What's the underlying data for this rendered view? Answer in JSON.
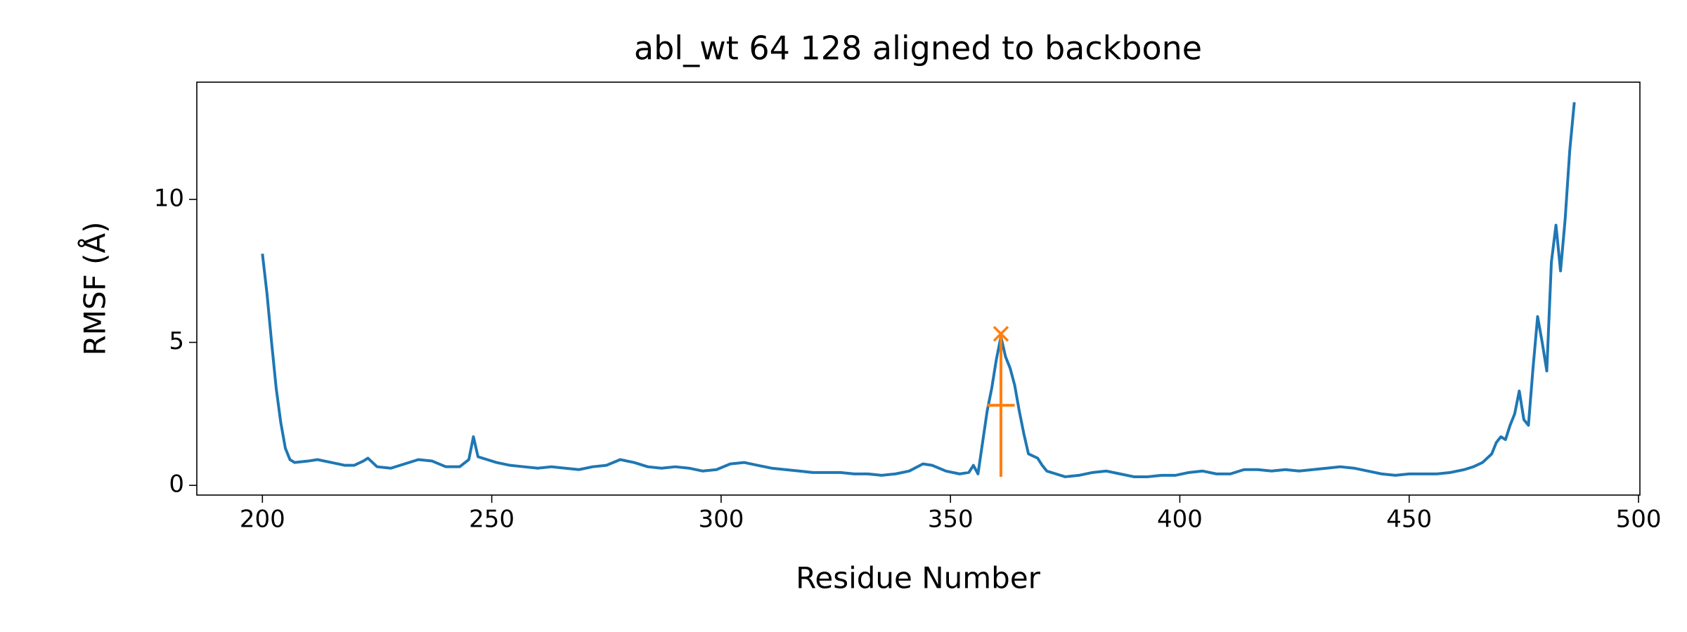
{
  "chart_data": {
    "type": "line",
    "title": "abl_wt 64 128 aligned to backbone",
    "xlabel": "Residue Number",
    "ylabel": "RMSF (Å)",
    "xlim": [
      185.7,
      500.3
    ],
    "ylim": [
      -0.34,
      14.1
    ],
    "xticks": [
      200,
      250,
      300,
      350,
      400,
      450,
      500
    ],
    "yticks": [
      0,
      5,
      10
    ],
    "grid": false,
    "series": [
      {
        "color": "#1f77b4",
        "x": [
          200,
          201,
          202,
          203,
          204,
          205,
          206,
          207,
          210,
          212,
          215,
          218,
          220,
          222,
          223,
          225,
          228,
          231,
          234,
          237,
          240,
          243,
          245,
          246,
          247,
          249,
          251,
          254,
          257,
          260,
          263,
          266,
          269,
          272,
          275,
          278,
          281,
          284,
          287,
          290,
          293,
          296,
          299,
          302,
          305,
          308,
          311,
          314,
          317,
          320,
          323,
          326,
          329,
          332,
          335,
          338,
          341,
          344,
          346,
          349,
          352,
          354,
          355,
          356,
          357,
          358,
          359,
          360,
          361,
          362,
          363,
          364,
          365,
          366,
          367,
          369,
          370,
          371,
          373,
          375,
          378,
          381,
          384,
          387,
          390,
          393,
          396,
          399,
          402,
          405,
          408,
          411,
          414,
          417,
          420,
          423,
          426,
          429,
          432,
          435,
          438,
          441,
          444,
          447,
          450,
          453,
          456,
          459,
          462,
          464,
          466,
          468,
          469,
          470,
          471,
          472,
          473,
          474,
          475,
          476,
          477,
          478,
          479,
          480,
          481,
          482,
          483,
          484,
          485,
          486
        ],
        "values": [
          8.1,
          6.7,
          5.0,
          3.4,
          2.2,
          1.3,
          0.9,
          0.8,
          0.85,
          0.9,
          0.8,
          0.7,
          0.7,
          0.85,
          0.95,
          0.65,
          0.6,
          0.75,
          0.9,
          0.85,
          0.65,
          0.65,
          0.9,
          1.7,
          1.0,
          0.9,
          0.8,
          0.7,
          0.65,
          0.6,
          0.65,
          0.6,
          0.55,
          0.65,
          0.7,
          0.9,
          0.8,
          0.65,
          0.6,
          0.65,
          0.6,
          0.5,
          0.55,
          0.75,
          0.8,
          0.7,
          0.6,
          0.55,
          0.5,
          0.45,
          0.45,
          0.45,
          0.4,
          0.4,
          0.35,
          0.4,
          0.5,
          0.75,
          0.7,
          0.5,
          0.4,
          0.45,
          0.7,
          0.4,
          1.5,
          2.6,
          3.4,
          4.4,
          5.2,
          4.5,
          4.1,
          3.5,
          2.6,
          1.8,
          1.1,
          0.95,
          0.7,
          0.5,
          0.4,
          0.3,
          0.35,
          0.45,
          0.5,
          0.4,
          0.3,
          0.3,
          0.35,
          0.35,
          0.45,
          0.5,
          0.4,
          0.4,
          0.55,
          0.55,
          0.5,
          0.55,
          0.5,
          0.55,
          0.6,
          0.65,
          0.6,
          0.5,
          0.4,
          0.35,
          0.4,
          0.4,
          0.4,
          0.45,
          0.55,
          0.65,
          0.8,
          1.1,
          1.5,
          1.7,
          1.6,
          2.1,
          2.5,
          3.3,
          2.3,
          2.1,
          4.1,
          5.9,
          5.0,
          4.0,
          7.8,
          9.1,
          7.5,
          9.3,
          11.7,
          13.4
        ]
      }
    ],
    "errorbar": {
      "color": "#ff7f0e",
      "x": 361,
      "y": 2.8,
      "yerr": 2.5,
      "xerr": 3
    },
    "marker": {
      "color": "#ff7f0e",
      "x": 361,
      "y": 5.3
    }
  }
}
